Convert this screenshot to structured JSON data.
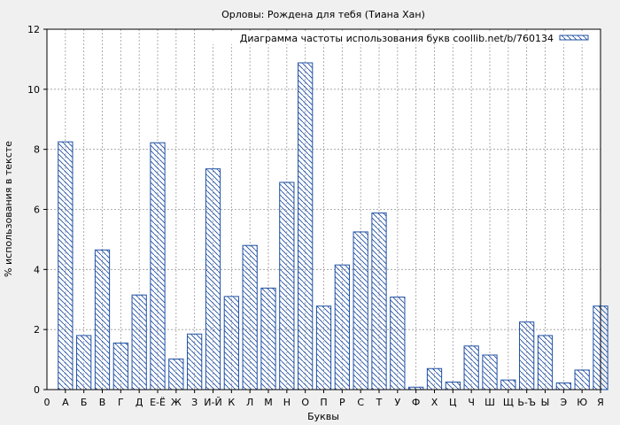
{
  "chart_data": {
    "type": "bar",
    "title": "Орловы: Рождена для тебя (Тиана Хан)",
    "xlabel": "Буквы",
    "ylabel": "% использования в тексте",
    "ylim": [
      0,
      12
    ],
    "yticks": [
      0,
      2,
      4,
      6,
      8,
      10,
      12
    ],
    "grid": true,
    "legend_position": "top-right",
    "series": [
      {
        "name": "Диаграмма частоты использования букв coollib.net/b/760134",
        "color": "#1f4fa3",
        "pattern": "hatch"
      }
    ],
    "origin_label": "0",
    "categories": [
      "А",
      "Б",
      "В",
      "Г",
      "Д",
      "Е-Ё",
      "Ж",
      "З",
      "И-Й",
      "К",
      "Л",
      "М",
      "Н",
      "О",
      "П",
      "Р",
      "С",
      "Т",
      "У",
      "Ф",
      "Х",
      "Ц",
      "Ч",
      "Ш",
      "Щ",
      "Ь-Ъ",
      "Ы",
      "Э",
      "Ю",
      "Я"
    ],
    "values": [
      8.25,
      1.8,
      4.65,
      1.55,
      3.15,
      8.22,
      1.02,
      1.85,
      7.35,
      3.1,
      4.8,
      3.38,
      6.9,
      10.88,
      2.78,
      4.15,
      5.25,
      5.88,
      3.08,
      0.08,
      0.7,
      0.25,
      1.45,
      1.15,
      0.32,
      2.25,
      1.8,
      0.22,
      0.65,
      2.78
    ]
  }
}
